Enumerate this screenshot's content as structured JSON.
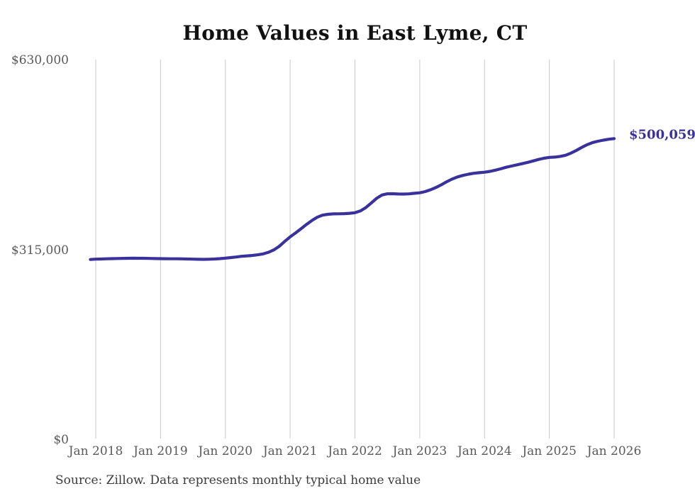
{
  "header": {
    "title": "Home Values in East Lyme, CT"
  },
  "source_note": "Source: Zillow. Data represents monthly typical home value",
  "colors": {
    "background": "#ffffff",
    "line": "#39319c",
    "grid": "#c9c9c9",
    "title": "#111111",
    "tick": "#595959",
    "end_label": "#39319c",
    "source": "#3b3b3b"
  },
  "chart_data": {
    "type": "line",
    "title": "Home Values in East Lyme, CT",
    "xlabel": "",
    "ylabel": "",
    "ylim": [
      0,
      630000
    ],
    "y_ticks": [
      0,
      315000,
      630000
    ],
    "y_tick_labels": [
      "$0",
      "$315,000",
      "$630,000"
    ],
    "x_tick_labels": [
      "Jan 2018",
      "Jan 2019",
      "Jan 2020",
      "Jan 2021",
      "Jan 2022",
      "Jan 2023",
      "Jan 2024",
      "Jan 2025",
      "Jan 2026"
    ],
    "grid": "vertical-only",
    "legend": "none",
    "start_offset_months": 1,
    "final_value": 500059,
    "final_value_label": "$500,059",
    "series": [
      {
        "name": "Monthly typical home value",
        "start_month": "Dec 2017",
        "end_month": "Jan 2026",
        "values": [
          299500,
          300000,
          300300,
          300600,
          300900,
          301100,
          301300,
          301500,
          301600,
          301500,
          301400,
          301200,
          301000,
          300900,
          300700,
          300600,
          300600,
          300500,
          300300,
          300000,
          299800,
          299700,
          299900,
          300300,
          300900,
          301700,
          302600,
          303600,
          304700,
          305500,
          306200,
          307200,
          308800,
          311500,
          315500,
          321500,
          329500,
          337000,
          343500,
          350500,
          357500,
          364000,
          369500,
          373000,
          374500,
          375200,
          375300,
          375500,
          376100,
          377000,
          380000,
          385500,
          393000,
          401000,
          406500,
          408500,
          408600,
          408200,
          408000,
          408400,
          409300,
          410200,
          412200,
          415200,
          419000,
          423500,
          428500,
          433000,
          436500,
          439000,
          441000,
          442500,
          443500,
          444300,
          445700,
          447700,
          450000,
          452500,
          454600,
          456600,
          458600,
          460700,
          463000,
          465500,
          467500,
          468900,
          469400,
          470500,
          472500,
          476000,
          480500,
          485500,
          490000,
          493500,
          495800,
          497500,
          499000,
          500059
        ]
      }
    ]
  }
}
